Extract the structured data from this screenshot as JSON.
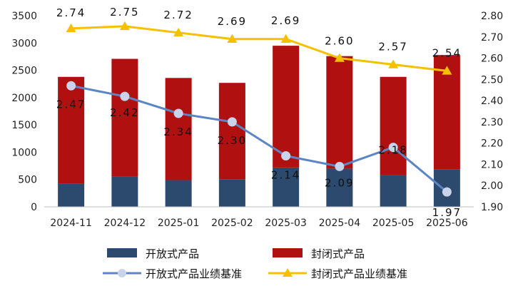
{
  "chart_data": {
    "type": "bar+line",
    "title": "",
    "categories": [
      "2024-11",
      "2024-12",
      "2025-01",
      "2025-02",
      "2025-03",
      "2025-04",
      "2025-05",
      "2025-06"
    ],
    "bar_series": [
      {
        "name": "开放式产品",
        "color": "#2c4a6e",
        "values": [
          420,
          550,
          490,
          500,
          720,
          700,
          580,
          690
        ]
      },
      {
        "name": "封闭式产品",
        "color": "#b01010",
        "values": [
          1960,
          2160,
          1870,
          1770,
          2230,
          2060,
          1800,
          2090
        ]
      }
    ],
    "line_series": [
      {
        "name": "开放式产品业绩基准",
        "color": "#5b85c4",
        "marker": "circle",
        "values": [
          2.47,
          2.42,
          2.34,
          2.3,
          2.14,
          2.09,
          2.18,
          1.97
        ],
        "labels": [
          "2.47",
          "2.42",
          "2.34",
          "2.30",
          "2.14",
          "2.09",
          "2.18",
          "1.97"
        ]
      },
      {
        "name": "封闭式产品业绩基准",
        "color": "#f5c000",
        "marker": "triangle",
        "values": [
          2.74,
          2.75,
          2.72,
          2.69,
          2.69,
          2.6,
          2.57,
          2.54
        ],
        "labels": [
          "2.74",
          "2.75",
          "2.72",
          "2.69",
          "2.69",
          "2.60",
          "2.57",
          "2.54"
        ]
      }
    ],
    "y_left": {
      "min": 0,
      "max": 3500,
      "ticks": [
        "0",
        "500",
        "1000",
        "1500",
        "2000",
        "2500",
        "3000",
        "3500"
      ]
    },
    "y_right": {
      "min": 1.9,
      "max": 2.8,
      "ticks": [
        "1.90",
        "2.00",
        "2.10",
        "2.20",
        "2.30",
        "2.40",
        "2.50",
        "2.60",
        "2.70",
        "2.80"
      ]
    },
    "legend": [
      {
        "label": "开放式产品",
        "kind": "bar",
        "color": "#2c4a6e"
      },
      {
        "label": "封闭式产品",
        "kind": "bar",
        "color": "#b01010"
      },
      {
        "label": "开放式产品业绩基准",
        "kind": "line-circle",
        "color": "#5b85c4"
      },
      {
        "label": "封闭式产品业绩基准",
        "kind": "line-triangle",
        "color": "#f5c000"
      }
    ],
    "legend_position": "bottom"
  }
}
